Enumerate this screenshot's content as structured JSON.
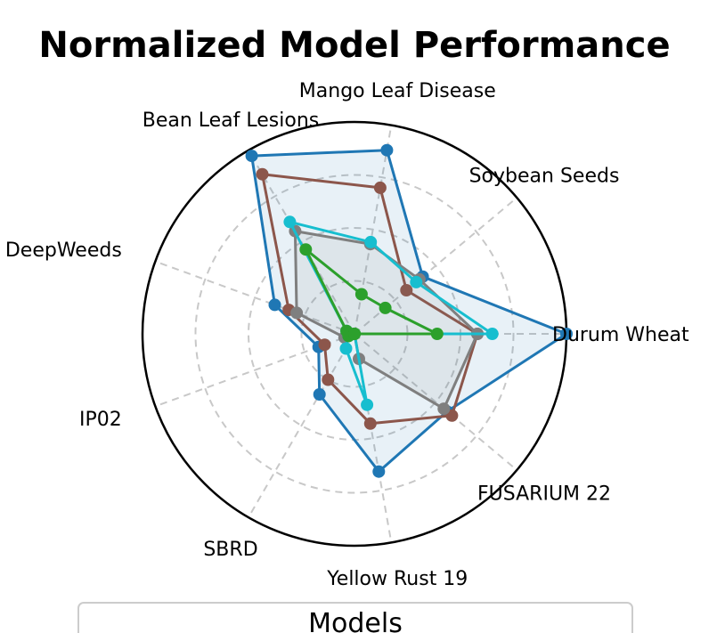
{
  "chart_data": {
    "type": "radar",
    "title": "Normalized Model Performance",
    "legend_title": "Models",
    "legend_placement": "bottom-center",
    "grid": true,
    "rlim": [
      0,
      1
    ],
    "categories": [
      "Durum Wheat",
      "Soybean Seeds",
      "Mango Leaf Disease",
      "Bean Leaf Lesions",
      "DeepWeeds",
      "IP02",
      "SBRD",
      "Yellow Rust 19",
      "FUSARIUM 22"
    ],
    "series": [
      {
        "color": "#1f77b4",
        "fill": true,
        "values": [
          1.0,
          0.42,
          0.88,
          0.97,
          0.4,
          0.18,
          0.33,
          0.66,
          0.57
        ]
      },
      {
        "color": "#8c564b",
        "fill": false,
        "values": [
          0.58,
          0.32,
          0.7,
          0.87,
          0.33,
          0.15,
          0.25,
          0.43,
          0.6
        ]
      },
      {
        "color": "#7f7f7f",
        "fill": true,
        "values": [
          0.58,
          0.4,
          0.43,
          0.56,
          0.29,
          0.05,
          0.0,
          0.12,
          0.55
        ]
      },
      {
        "color": "#17becf",
        "fill": false,
        "values": [
          0.65,
          0.38,
          0.44,
          0.61,
          0.04,
          0.03,
          0.08,
          0.34,
          0.0
        ]
      },
      {
        "color": "#2ca02c",
        "fill": false,
        "values": [
          0.39,
          0.19,
          0.19,
          0.46,
          0.04,
          0.03,
          0.0,
          0.0,
          0.0
        ]
      }
    ]
  }
}
